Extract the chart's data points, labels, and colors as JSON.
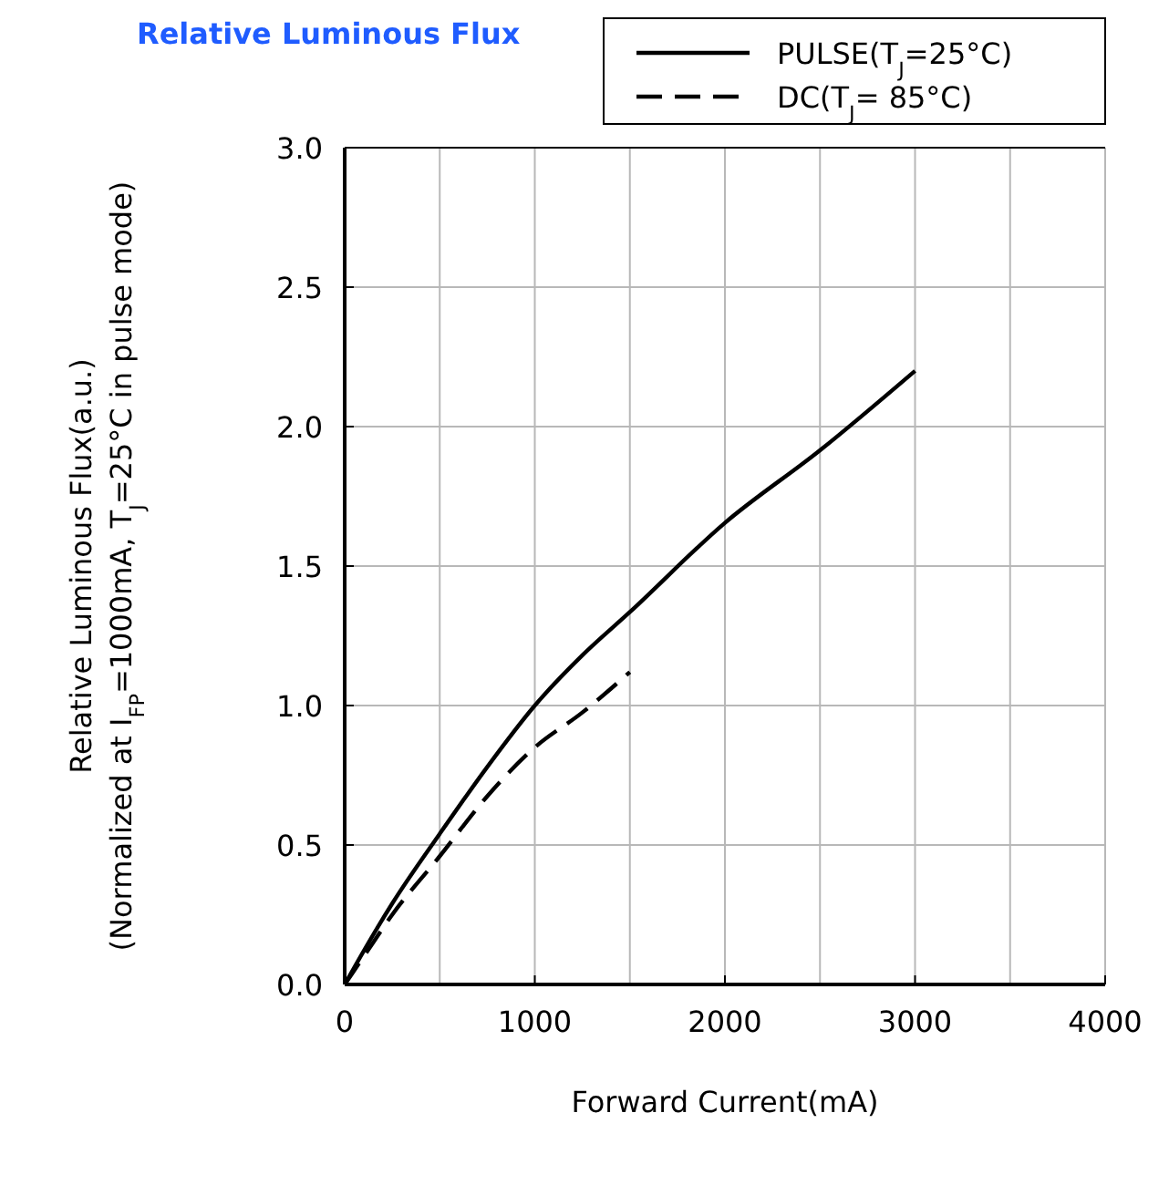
{
  "chart_data": {
    "type": "line",
    "title": "Relative Luminous Flux",
    "xlabel": "Forward Current(mA)",
    "ylabel": "Relative Luminous Flux(a.u.)\n(Normalized at I$_{FP}$=1000mA, T$_{J}$=25°C in pulse mode)",
    "series": [
      {
        "name": "PULSE(T$_{J}$=25°C)",
        "color": "#000000",
        "line_style": "solid",
        "x": [
          0,
          100,
          250,
          500,
          750,
          1000,
          1250,
          1500,
          2000,
          2500,
          3000
        ],
        "values": [
          0,
          0.12,
          0.29,
          0.54,
          0.78,
          1.0,
          1.18,
          1.335,
          1.655,
          1.915,
          2.2
        ]
      },
      {
        "name": "DC(T$_{J}$= 85°C)",
        "color": "#000000",
        "line_style": "dashed",
        "x": [
          0,
          100,
          250,
          500,
          750,
          1000,
          1250,
          1500
        ],
        "values": [
          0,
          0.1,
          0.25,
          0.46,
          0.675,
          0.85,
          0.975,
          1.12
        ]
      }
    ],
    "xlim": [
      0,
      4000
    ],
    "xticks": [
      0,
      1000,
      2000,
      3000,
      4000
    ],
    "ylim": [
      0,
      3
    ],
    "yticks": [
      {
        "value": 0,
        "label": "0.0"
      },
      {
        "value": 0.5,
        "label": "0.5"
      },
      {
        "value": 1,
        "label": "1.0"
      },
      {
        "value": 1.5,
        "label": "1.5"
      },
      {
        "value": 2,
        "label": "2.0"
      },
      {
        "value": 2.5,
        "label": "2.5"
      },
      {
        "value": 3,
        "label": "3.0"
      }
    ],
    "grid": true,
    "legend": "top right",
    "marker": "none"
  }
}
